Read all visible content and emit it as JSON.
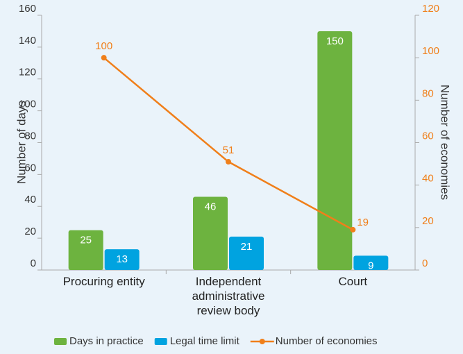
{
  "chart_data": {
    "type": "bar",
    "categories": [
      "Procuring entity",
      "Independent administrative review body",
      "Court"
    ],
    "series": [
      {
        "name": "Days in practice",
        "color": "#6db33f",
        "values": [
          25,
          46,
          150
        ]
      },
      {
        "name": "Legal time limit",
        "color": "#00a3e0",
        "values": [
          13,
          21,
          9
        ]
      },
      {
        "name": "Number of economies",
        "type": "line",
        "color": "#f07f1a",
        "axis": "y2",
        "values": [
          100,
          51,
          19
        ]
      }
    ],
    "ylabel": "Number of days",
    "y2label": "Number of economies",
    "ylim": [
      0,
      160
    ],
    "yticks": [
      0,
      20,
      40,
      60,
      80,
      100,
      120,
      140,
      160
    ],
    "y2lim": [
      0,
      120
    ],
    "y2ticks": [
      0,
      20,
      40,
      60,
      80,
      100,
      120
    ],
    "legend": "bottom"
  }
}
